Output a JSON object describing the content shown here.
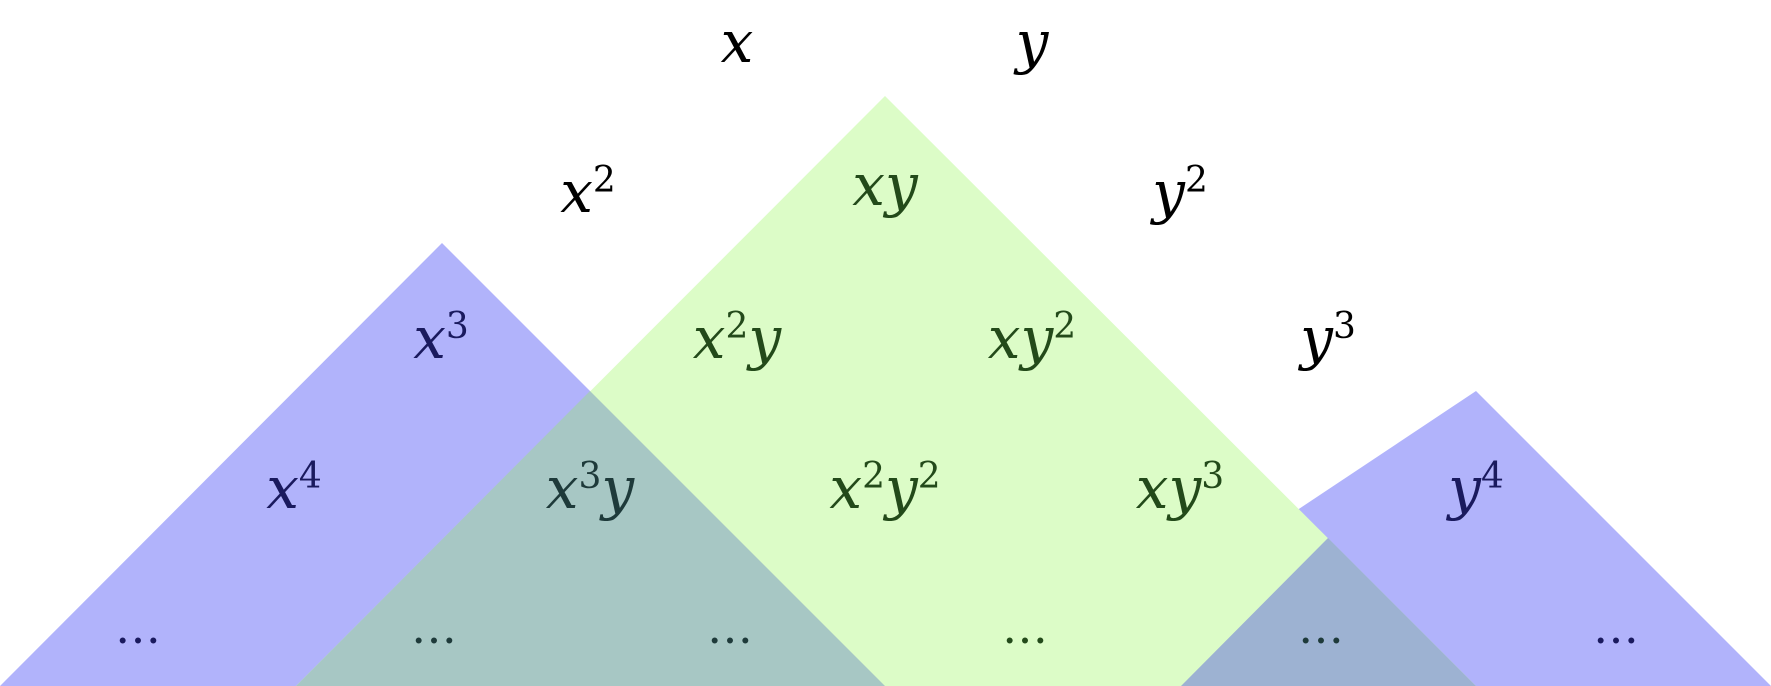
{
  "diagram": {
    "colors": {
      "ideal_triangle": "#b1b3fb",
      "highlight_triangle": "#dcfcc7",
      "overlap_blue_green": "#a7c7c4",
      "overlap_green_blue": "#9db2d2",
      "text_outside": "#000000",
      "text_blue_region": "#1a1a5e",
      "text_green_region": "#234a1a",
      "text_overlap_region": "#1e3a3a"
    },
    "monomials": {
      "x": {
        "base": "x",
        "exp": ""
      },
      "y": {
        "base": "y",
        "exp": ""
      },
      "x2": {
        "base": "x",
        "exp": "2"
      },
      "xy": {
        "base": "xy",
        "exp": ""
      },
      "y2": {
        "base": "y",
        "exp": "2"
      },
      "x3": {
        "base": "x",
        "exp": "3"
      },
      "x2y": {
        "base1": "x",
        "exp1": "2",
        "base2": "y"
      },
      "xy2": {
        "base": "xy",
        "exp": "2"
      },
      "y3": {
        "base": "y",
        "exp": "3"
      },
      "x4": {
        "base": "x",
        "exp": "4"
      },
      "x3y": {
        "base1": "x",
        "exp1": "3",
        "base2": "y"
      },
      "x2y2": {
        "base1": "x",
        "exp1": "2",
        "base2": "y",
        "exp2": "2"
      },
      "xy3": {
        "base": "xy",
        "exp": "3"
      },
      "y4": {
        "base": "y",
        "exp": "4"
      }
    },
    "ellipses": [
      "…",
      "…",
      "…",
      "…",
      "…",
      "…"
    ]
  }
}
